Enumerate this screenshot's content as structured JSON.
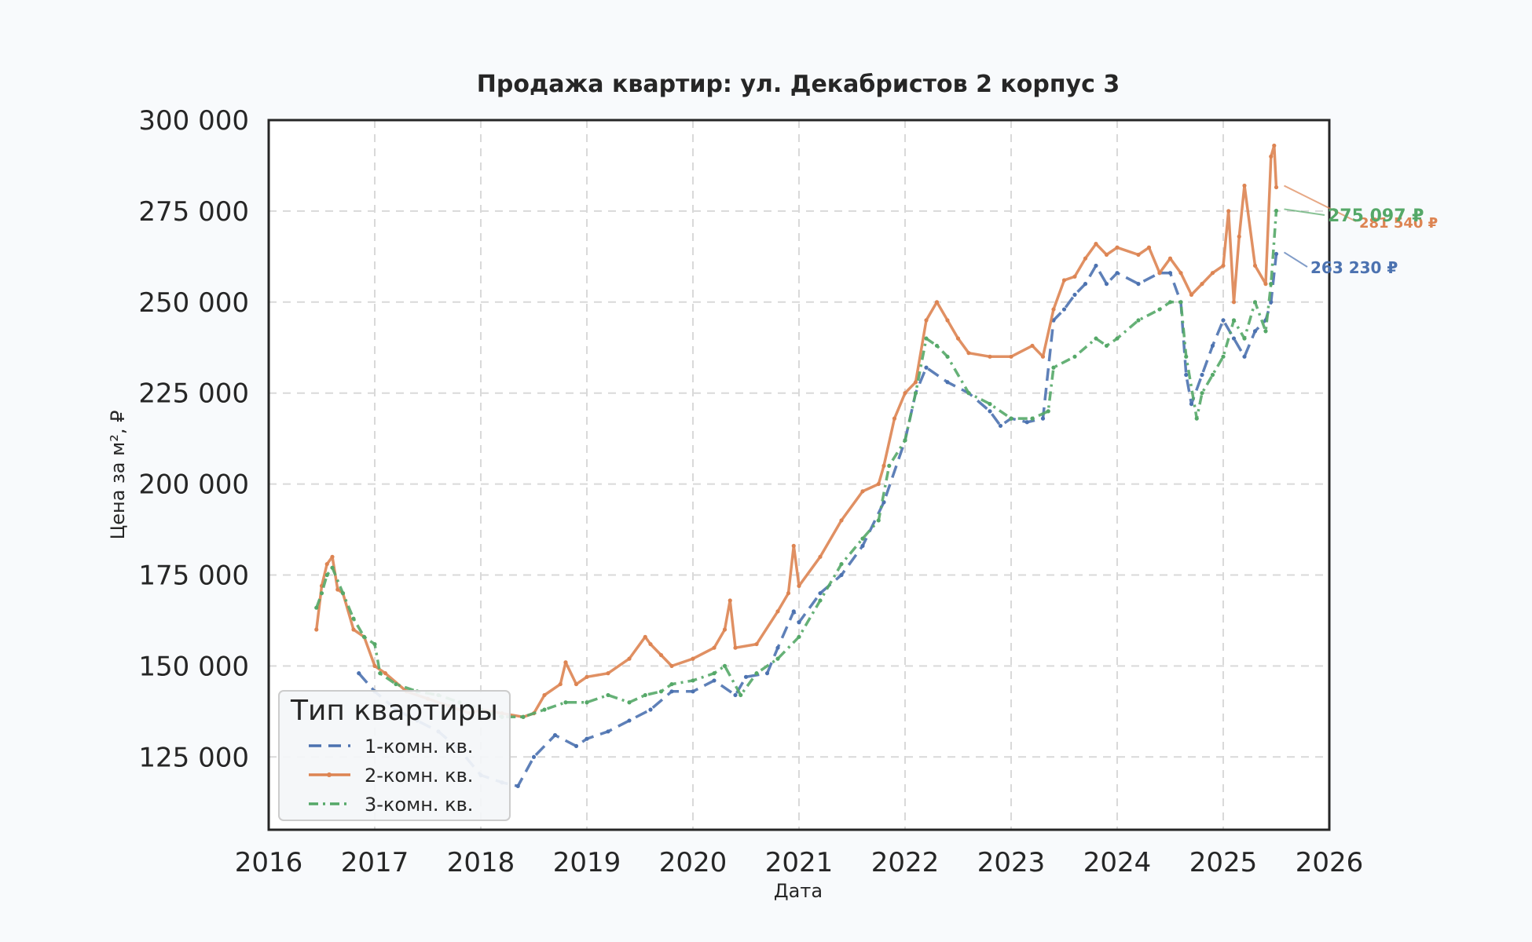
{
  "chart_data": {
    "type": "line",
    "title": "Продажа квартир: ул. Декабристов 2 корпус 3",
    "xlabel": "Дата",
    "ylabel": "Цена за м², ₽",
    "xlim": [
      2016,
      2026
    ],
    "ylim": [
      105000,
      300000
    ],
    "x_ticks": [
      "2016",
      "2017",
      "2018",
      "2019",
      "2020",
      "2021",
      "2022",
      "2023",
      "2024",
      "2025",
      "2026"
    ],
    "y_ticks": [
      "125 000",
      "150 000",
      "175 000",
      "200 000",
      "225 000",
      "250 000",
      "275 000",
      "300 000"
    ],
    "y_tick_values": [
      125000,
      150000,
      175000,
      200000,
      225000,
      250000,
      275000,
      300000
    ],
    "grid": true,
    "legend": {
      "title": "Тип квартиры",
      "position": "lower-left"
    },
    "series": [
      {
        "name": "1-комн. кв.",
        "color": "#4c72b0",
        "style": "dashed",
        "last_label": "263 230 ₽",
        "x": [
          2016.85,
          2017.0,
          2017.2,
          2017.4,
          2017.6,
          2017.8,
          2018.0,
          2018.2,
          2018.35,
          2018.5,
          2018.7,
          2018.9,
          2019.0,
          2019.2,
          2019.4,
          2019.6,
          2019.8,
          2020.0,
          2020.2,
          2020.4,
          2020.5,
          2020.7,
          2020.8,
          2020.95,
          2021.0,
          2021.2,
          2021.4,
          2021.6,
          2021.8,
          2022.0,
          2022.1,
          2022.2,
          2022.4,
          2022.6,
          2022.8,
          2022.9,
          2023.0,
          2023.15,
          2023.3,
          2023.4,
          2023.5,
          2023.6,
          2023.7,
          2023.8,
          2023.9,
          2024.0,
          2024.2,
          2024.4,
          2024.5,
          2024.6,
          2024.65,
          2024.7,
          2024.8,
          2024.9,
          2025.0,
          2025.1,
          2025.2,
          2025.3,
          2025.4,
          2025.45,
          2025.5
        ],
        "y": [
          148000,
          143000,
          138000,
          135000,
          132000,
          127000,
          120000,
          118000,
          117000,
          125000,
          131000,
          128000,
          130000,
          132000,
          135000,
          138000,
          143000,
          143000,
          146000,
          142000,
          147000,
          148000,
          155000,
          165000,
          162000,
          170000,
          175000,
          183000,
          195000,
          212000,
          225000,
          232000,
          228000,
          225000,
          220000,
          216000,
          218000,
          217000,
          218000,
          245000,
          248000,
          252000,
          255000,
          260000,
          255000,
          258000,
          255000,
          258000,
          258000,
          250000,
          230000,
          222000,
          230000,
          238000,
          245000,
          240000,
          235000,
          242000,
          245000,
          250000,
          263230
        ]
      },
      {
        "name": "2-комн. кв.",
        "color": "#dd8452",
        "style": "solid",
        "last_label": "281 540 ₽",
        "x": [
          2016.45,
          2016.5,
          2016.55,
          2016.6,
          2016.65,
          2016.7,
          2016.8,
          2016.9,
          2017.0,
          2017.1,
          2017.3,
          2017.5,
          2017.7,
          2017.9,
          2018.0,
          2018.2,
          2018.4,
          2018.5,
          2018.6,
          2018.75,
          2018.8,
          2018.9,
          2019.0,
          2019.2,
          2019.4,
          2019.55,
          2019.6,
          2019.7,
          2019.8,
          2020.0,
          2020.2,
          2020.3,
          2020.35,
          2020.4,
          2020.6,
          2020.8,
          2020.9,
          2020.95,
          2021.0,
          2021.2,
          2021.4,
          2021.6,
          2021.75,
          2021.8,
          2021.9,
          2022.0,
          2022.1,
          2022.2,
          2022.3,
          2022.4,
          2022.5,
          2022.6,
          2022.8,
          2023.0,
          2023.2,
          2023.3,
          2023.4,
          2023.5,
          2023.6,
          2023.7,
          2023.8,
          2023.9,
          2024.0,
          2024.2,
          2024.3,
          2024.4,
          2024.5,
          2024.6,
          2024.7,
          2024.8,
          2024.9,
          2025.0,
          2025.05,
          2025.1,
          2025.15,
          2025.2,
          2025.3,
          2025.4,
          2025.45,
          2025.48,
          2025.5
        ],
        "y": [
          160000,
          172000,
          178000,
          180000,
          171000,
          170000,
          160000,
          158000,
          150000,
          148000,
          143000,
          141000,
          139000,
          137000,
          138000,
          137000,
          136000,
          137000,
          142000,
          145000,
          151000,
          145000,
          147000,
          148000,
          152000,
          158000,
          156000,
          153000,
          150000,
          152000,
          155000,
          160000,
          168000,
          155000,
          156000,
          165000,
          170000,
          183000,
          172000,
          180000,
          190000,
          198000,
          200000,
          205000,
          218000,
          225000,
          228000,
          245000,
          250000,
          245000,
          240000,
          236000,
          235000,
          235000,
          238000,
          235000,
          248000,
          256000,
          257000,
          262000,
          266000,
          263000,
          265000,
          263000,
          265000,
          258000,
          262000,
          258000,
          252000,
          255000,
          258000,
          260000,
          275000,
          250000,
          268000,
          282000,
          260000,
          255000,
          290000,
          293000,
          281540
        ]
      },
      {
        "name": "3-комн. кв.",
        "color": "#55a868",
        "style": "dashdot",
        "last_label": "275 097 ₽",
        "x": [
          2016.45,
          2016.5,
          2016.55,
          2016.6,
          2016.7,
          2016.8,
          2016.9,
          2017.0,
          2017.05,
          2017.2,
          2017.4,
          2017.6,
          2017.8,
          2018.0,
          2018.2,
          2018.4,
          2018.6,
          2018.8,
          2019.0,
          2019.2,
          2019.4,
          2019.55,
          2019.7,
          2019.8,
          2020.0,
          2020.2,
          2020.3,
          2020.45,
          2020.6,
          2020.8,
          2021.0,
          2021.2,
          2021.4,
          2021.6,
          2021.75,
          2021.85,
          2022.0,
          2022.1,
          2022.2,
          2022.3,
          2022.4,
          2022.6,
          2022.8,
          2023.0,
          2023.2,
          2023.35,
          2023.4,
          2023.6,
          2023.8,
          2023.9,
          2024.0,
          2024.2,
          2024.4,
          2024.5,
          2024.6,
          2024.65,
          2024.75,
          2024.8,
          2024.9,
          2025.0,
          2025.1,
          2025.2,
          2025.3,
          2025.4,
          2025.45,
          2025.5
        ],
        "y": [
          166000,
          170000,
          175000,
          177000,
          170000,
          163000,
          158000,
          156000,
          148000,
          145000,
          143000,
          142000,
          140000,
          138000,
          136000,
          136000,
          138000,
          140000,
          140000,
          142000,
          140000,
          142000,
          143000,
          145000,
          146000,
          148000,
          150000,
          142000,
          148000,
          152000,
          158000,
          168000,
          178000,
          185000,
          190000,
          205000,
          212000,
          225000,
          240000,
          238000,
          235000,
          225000,
          222000,
          218000,
          218000,
          220000,
          232000,
          235000,
          240000,
          238000,
          240000,
          245000,
          248000,
          250000,
          250000,
          235000,
          218000,
          225000,
          230000,
          235000,
          245000,
          240000,
          250000,
          242000,
          255000,
          275097
        ]
      }
    ]
  }
}
